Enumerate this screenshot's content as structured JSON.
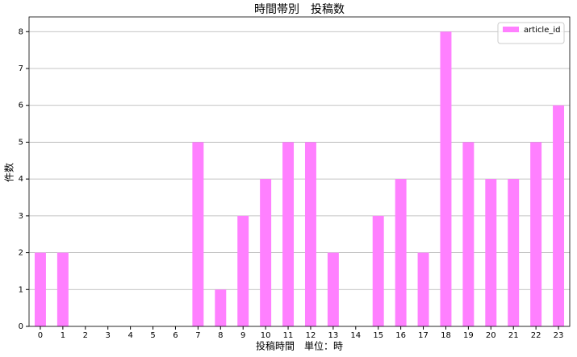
{
  "chart_data": {
    "type": "bar",
    "title": "時間帯別　投稿数",
    "x_label": "投稿時間　単位：時",
    "y_label": "件数",
    "categories": [
      0,
      1,
      2,
      3,
      4,
      5,
      6,
      7,
      8,
      9,
      10,
      11,
      12,
      13,
      14,
      15,
      16,
      17,
      18,
      19,
      20,
      21,
      22,
      23
    ],
    "series": [
      {
        "name": "article_id",
        "color": "#ff80ff",
        "values": [
          2,
          2,
          0,
          0,
          0,
          0,
          0,
          5,
          1,
          3,
          4,
          5,
          5,
          2,
          0,
          3,
          4,
          2,
          8,
          5,
          4,
          4,
          5,
          6
        ]
      }
    ],
    "ylim": [
      0,
      8.4
    ],
    "yticks": [
      0,
      1,
      2,
      3,
      4,
      5,
      6,
      7,
      8
    ],
    "grid": true,
    "legend": "upper right"
  }
}
